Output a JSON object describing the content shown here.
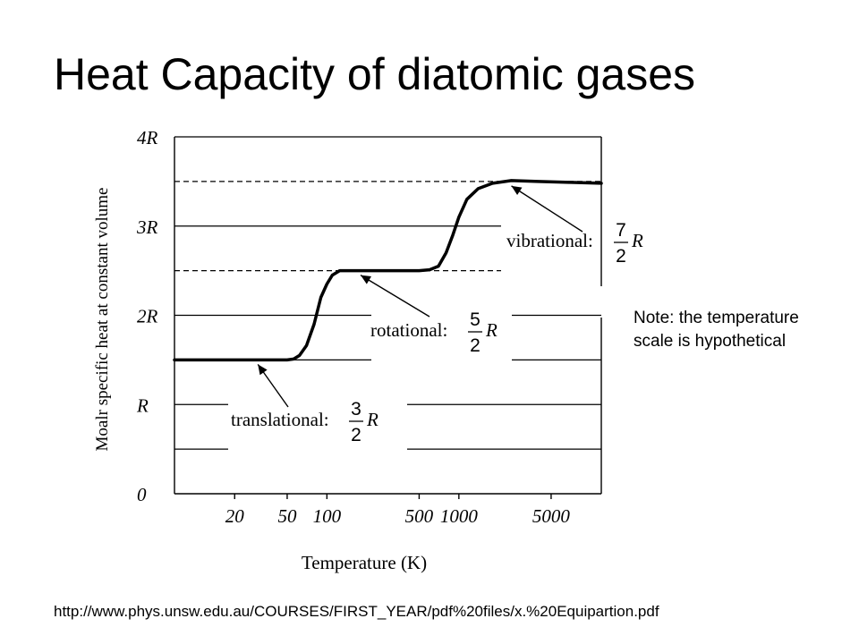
{
  "slide": {
    "title": "Heat Capacity of diatomic gases",
    "note": "Note: the temperature scale is hypothetical",
    "source": "http://www.phys.unsw.edu.au/COURSES/FIRST_YEAR/pdf%20files/x.%20Equipartion.pdf"
  },
  "chart_data": {
    "type": "line",
    "xlabel": "Temperature (K)",
    "ylabel": "Moalr specific heat at constant volume",
    "xscale": "log",
    "xlim": [
      7,
      12000
    ],
    "ylim": [
      0,
      4
    ],
    "x_ticks": [
      20,
      50,
      100,
      500,
      1000,
      5000
    ],
    "x_tick_labels": [
      "20",
      "50",
      "100",
      "500",
      "1000",
      "5000"
    ],
    "y_ticks": [
      0,
      1,
      2,
      3,
      4
    ],
    "y_tick_labels": [
      "0",
      "R",
      "2R",
      "3R",
      "4R"
    ],
    "grid": true,
    "series": [
      {
        "x": [
          7,
          50,
          56,
          62,
          70,
          80,
          90,
          100,
          110,
          125,
          400,
          500,
          600,
          700,
          800,
          900,
          1000,
          1150,
          1400,
          1800,
          2500,
          4000,
          7000,
          12000
        ],
        "y": [
          1.5,
          1.5,
          1.51,
          1.55,
          1.66,
          1.9,
          2.2,
          2.35,
          2.45,
          2.5,
          2.5,
          2.5,
          2.51,
          2.55,
          2.7,
          2.9,
          3.1,
          3.3,
          3.42,
          3.48,
          3.51,
          3.5,
          3.49,
          3.48
        ]
      }
    ],
    "reference_lines": [
      2.5,
      3.5
    ],
    "annotations": [
      {
        "label": "translational:",
        "num": "3",
        "den": "2",
        "unit": "R",
        "x": 30,
        "y": 1.5
      },
      {
        "label": "rotational:",
        "num": "5",
        "den": "2",
        "unit": "R",
        "x": 180,
        "y": 2.5
      },
      {
        "label": "vibrational:",
        "num": "7",
        "den": "2",
        "unit": "R",
        "x": 2500,
        "y": 3.5
      }
    ]
  }
}
